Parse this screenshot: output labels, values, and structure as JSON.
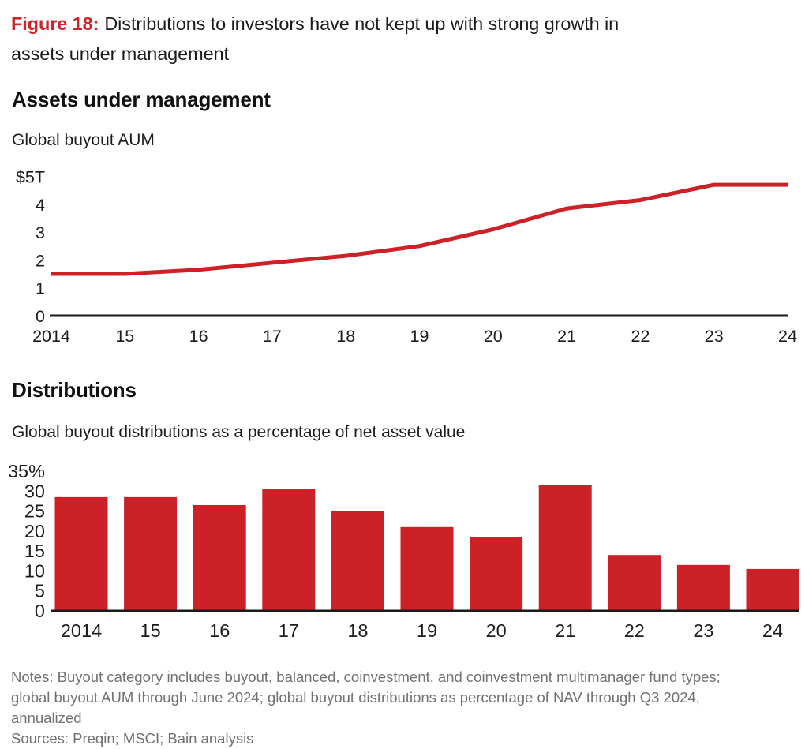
{
  "figure": {
    "label": "Figure 18:",
    "title": "Distributions to investors have not kept up with strong growth in assets under management",
    "title_lines": [
      "Distributions to investors have not kept up with strong growth in",
      "assets under management"
    ]
  },
  "aum": {
    "heading": "Assets under management",
    "subtitle": "Global buyout AUM"
  },
  "dist": {
    "heading": "Distributions",
    "subtitle": "Global buyout distributions as a percentage of net asset value"
  },
  "notes": {
    "lines": [
      "Notes: Buyout category includes buyout, balanced, coinvestment, and coinvestment multimanager fund types;",
      "global buyout AUM through June 2024; global buyout distributions as percentage of NAV through Q3 2024,",
      "annualized"
    ],
    "sources": "Sources: Preqin; MSCI; Bain analysis"
  },
  "colors": {
    "figure_label_red": "#d0232a",
    "chart_red": "#cd2128",
    "text": "#1c1c1c",
    "axis": "#1a1a1a",
    "notes_gray": "#717171"
  },
  "chart_data": [
    {
      "type": "line",
      "title": "Global buyout AUM",
      "unit": "$ trillions",
      "x": [
        2014,
        2015,
        2016,
        2017,
        2018,
        2019,
        2020,
        2021,
        2022,
        2023,
        2024
      ],
      "x_tick_labels": [
        "2014",
        "15",
        "16",
        "17",
        "18",
        "19",
        "20",
        "21",
        "22",
        "23",
        "24"
      ],
      "values": [
        1.5,
        1.5,
        1.65,
        1.9,
        2.15,
        2.5,
        3.1,
        3.85,
        4.15,
        4.7,
        4.7
      ],
      "y_tick_labels": [
        "$5T",
        "4",
        "3",
        "2",
        "1",
        "0"
      ],
      "ylim": [
        0,
        5
      ],
      "grid": false,
      "legend": "none",
      "line_color": "#cd2128"
    },
    {
      "type": "bar",
      "title": "Global buyout distributions as a percentage of net asset value",
      "unit": "% of NAV",
      "categories": [
        "2014",
        "15",
        "16",
        "17",
        "18",
        "19",
        "20",
        "21",
        "22",
        "23",
        "24"
      ],
      "values": [
        28.5,
        28.5,
        26.5,
        30.5,
        25,
        21,
        18.5,
        31.5,
        14,
        11.5,
        10.5
      ],
      "y_tick_labels": [
        "35%",
        "30",
        "25",
        "20",
        "15",
        "10",
        "5",
        "0"
      ],
      "ylim": [
        0,
        35
      ],
      "grid": false,
      "legend": "none",
      "bar_color": "#cd2128"
    }
  ]
}
